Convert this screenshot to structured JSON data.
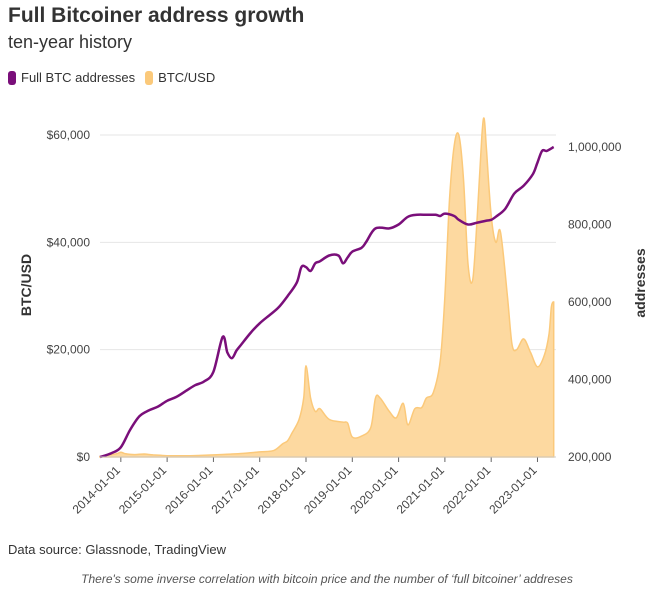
{
  "chart_data": {
    "type": "area+line",
    "title": "Full Bitcoiner address growth",
    "subtitle": "ten-year history",
    "legend": [
      {
        "name": "Full BTC addresses",
        "color": "#7a0f7a"
      },
      {
        "name": "BTC/USD",
        "color": "#fbc97a"
      }
    ],
    "x_tick_labels": [
      "2014-01-01",
      "2015-01-01",
      "2016-01-01",
      "2017-01-01",
      "2018-01-01",
      "2019-01-01",
      "2020-01-01",
      "2021-01-01",
      "2022-01-01",
      "2023-01-01"
    ],
    "x_range": [
      "2013-08-01",
      "2023-06-01"
    ],
    "y_left": {
      "label": "BTC/USD",
      "range": [
        0,
        60000
      ],
      "ticks": [
        0,
        20000,
        40000,
        60000
      ],
      "tick_labels": [
        "$0",
        "$20,000",
        "$40,000",
        "$60,000"
      ]
    },
    "y_right": {
      "label": "addresses",
      "range": [
        200000,
        1000000
      ],
      "ticks": [
        200000,
        400000,
        600000,
        800000,
        1000000
      ],
      "tick_labels": [
        "200,000",
        "400,000",
        "600,000",
        "800,000",
        "1,000,000"
      ]
    },
    "series": [
      {
        "name": "BTC/USD",
        "axis": "left",
        "type": "area",
        "x": [
          2013.55,
          2013.9,
          2014.0,
          2014.1,
          2014.3,
          2014.5,
          2014.7,
          2015.0,
          2015.5,
          2016.0,
          2016.4,
          2016.6,
          2017.0,
          2017.3,
          2017.5,
          2017.6,
          2017.7,
          2017.85,
          2017.95,
          2018.0,
          2018.1,
          2018.2,
          2018.3,
          2018.5,
          2018.8,
          2018.9,
          2019.0,
          2019.2,
          2019.4,
          2019.5,
          2019.6,
          2019.8,
          2019.95,
          2020.1,
          2020.2,
          2020.35,
          2020.5,
          2020.6,
          2020.75,
          2020.9,
          2021.0,
          2021.1,
          2021.2,
          2021.3,
          2021.4,
          2021.5,
          2021.6,
          2021.7,
          2021.8,
          2021.85,
          2021.9,
          2022.0,
          2022.1,
          2022.2,
          2022.35,
          2022.45,
          2022.55,
          2022.7,
          2022.85,
          2023.0,
          2023.15,
          2023.25,
          2023.3,
          2023.35
        ],
        "values": [
          100,
          600,
          900,
          600,
          450,
          550,
          400,
          250,
          250,
          400,
          550,
          650,
          950,
          1200,
          2500,
          3000,
          4500,
          7000,
          11000,
          17000,
          11000,
          8500,
          9000,
          7000,
          6500,
          6300,
          3700,
          3900,
          5500,
          11000,
          11000,
          8500,
          7300,
          10000,
          6000,
          9000,
          9200,
          11000,
          12000,
          18000,
          30000,
          48000,
          58000,
          60000,
          52000,
          36000,
          33000,
          45000,
          60000,
          63000,
          57000,
          45000,
          40000,
          42000,
          30000,
          21000,
          20000,
          22000,
          19500,
          16800,
          19000,
          23000,
          28000,
          29000
        ]
      },
      {
        "name": "Full BTC addresses",
        "axis": "right",
        "type": "line",
        "x": [
          2013.55,
          2013.8,
          2014.0,
          2014.2,
          2014.4,
          2014.6,
          2014.8,
          2015.0,
          2015.2,
          2015.4,
          2015.6,
          2015.8,
          2016.0,
          2016.2,
          2016.3,
          2016.4,
          2016.5,
          2016.6,
          2016.8,
          2017.0,
          2017.2,
          2017.4,
          2017.6,
          2017.8,
          2017.9,
          2018.0,
          2018.1,
          2018.2,
          2018.3,
          2018.5,
          2018.7,
          2018.8,
          2018.9,
          2019.0,
          2019.2,
          2019.3,
          2019.5,
          2019.8,
          2020.0,
          2020.2,
          2020.4,
          2020.6,
          2020.8,
          2020.9,
          2021.0,
          2021.2,
          2021.3,
          2021.5,
          2021.7,
          2021.9,
          2022.0,
          2022.1,
          2022.3,
          2022.5,
          2022.7,
          2022.9,
          2023.0,
          2023.1,
          2023.2,
          2023.35
        ],
        "values": [
          200000,
          210000,
          225000,
          270000,
          305000,
          320000,
          330000,
          345000,
          355000,
          370000,
          385000,
          395000,
          420000,
          510000,
          470000,
          455000,
          475000,
          490000,
          520000,
          545000,
          565000,
          585000,
          615000,
          650000,
          690000,
          690000,
          680000,
          700000,
          705000,
          720000,
          720000,
          700000,
          715000,
          730000,
          740000,
          755000,
          790000,
          790000,
          800000,
          820000,
          825000,
          825000,
          825000,
          822000,
          828000,
          822000,
          812000,
          800000,
          805000,
          810000,
          812000,
          820000,
          840000,
          880000,
          900000,
          930000,
          960000,
          990000,
          990000,
          1000000
        ]
      }
    ],
    "source": "Data source: Glassnode, TradingView",
    "note": "There's some inverse correlation with bitcoin price and the number of ‘full bitcoiner’ addreses"
  }
}
